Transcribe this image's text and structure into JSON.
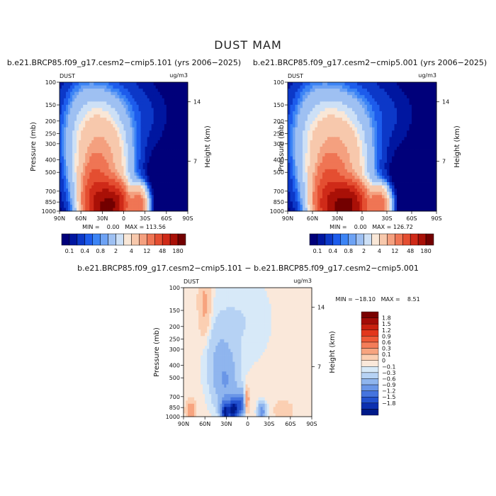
{
  "figure": {
    "title": "DUST MAM",
    "diff_title": "b.e21.BRCP85.f09_g17.cesm2−cmip5.101 − b.e21.BRCP85.f09_g17.cesm2−cmip5.001",
    "lat_ticks": [
      "90N",
      "60N",
      "30N",
      "0",
      "30S",
      "60S",
      "90S"
    ],
    "p_ticks": [
      "100",
      "150",
      "200",
      "250",
      "300",
      "400",
      "500",
      "700",
      "850",
      "1000"
    ],
    "p_values": [
      100,
      150,
      200,
      250,
      300,
      400,
      500,
      700,
      850,
      1000
    ],
    "h_ticks": [
      "14",
      "7"
    ],
    "ylabel": "Pressure (mb)",
    "y2label": "Height (km)",
    "field_label": "DUST",
    "units": "ug/m3"
  },
  "chart_data": [
    {
      "type": "heatmap",
      "title": "b.e21.BRCP85.f09_g17.cesm2−cmip5.101 (yrs 2006−2025)",
      "stats": "MIN =    0.00   MAX = 113.56",
      "levels": [
        "0.1",
        "0.4",
        "0.8",
        "2",
        "4",
        "12",
        "48",
        "180"
      ],
      "level_values": [
        0.1,
        0.2,
        0.4,
        0.6,
        0.8,
        1,
        2,
        3,
        4,
        8,
        12,
        24,
        48,
        96,
        180
      ],
      "colors": [
        "#00007a",
        "#0016a0",
        "#0c38c8",
        "#1d5cec",
        "#3c84f5",
        "#6da2f4",
        "#9ec0f2",
        "#cde0f6",
        "#f9e7d7",
        "#f7c8ac",
        "#f4a07f",
        "#ef7554",
        "#e44e31",
        "#cf2a18",
        "#a91007",
        "#730000"
      ],
      "min": 0.0,
      "max": 113.56,
      "xlim": [
        "90N",
        "90S"
      ],
      "ylim": [
        1000,
        100
      ]
    },
    {
      "type": "heatmap",
      "title": "b.e21.BRCP85.f09_g17.cesm2−cmip5.001 (yrs 2006−2025)",
      "stats": "MIN =    0.00   MAX = 126.72",
      "levels": [
        "0.1",
        "0.4",
        "0.8",
        "2",
        "4",
        "12",
        "48",
        "180"
      ],
      "min": 0.0,
      "max": 126.72,
      "xlim": [
        "90N",
        "90S"
      ],
      "ylim": [
        1000,
        100
      ]
    },
    {
      "type": "heatmap",
      "title": "b.e21.BRCP85.f09_g17.cesm2−cmip5.101 − b.e21.BRCP85.f09_g17.cesm2−cmip5.001",
      "stats": "MIN = −18.10   MAX =    8.51",
      "levels": [
        "1.8",
        "1.5",
        "1.2",
        "0.9",
        "0.6",
        "0.3",
        "0.1",
        "0",
        "−0.1",
        "−0.3",
        "−0.6",
        "−0.9",
        "−1.2",
        "−1.5",
        "−1.8"
      ],
      "colors": [
        "#7a0000",
        "#a30c07",
        "#c8200f",
        "#e2371c",
        "#ef5a37",
        "#f47d59",
        "#f7a47f",
        "#fbcfb2",
        "#fae8da",
        "#d7e9f8",
        "#b6d2f4",
        "#8fb5ee",
        "#6a96e7",
        "#4574de",
        "#2352cf",
        "#0c30b0",
        "#001a8a"
      ],
      "min": -18.1,
      "max": 8.51,
      "xlim": [
        "90N",
        "90S"
      ],
      "ylim": [
        1000,
        100
      ]
    }
  ]
}
